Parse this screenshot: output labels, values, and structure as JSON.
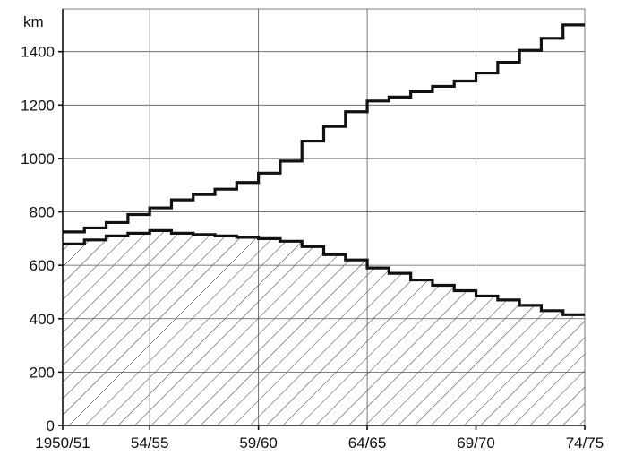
{
  "chart_data": {
    "type": "area",
    "title": "",
    "xlabel": "",
    "ylabel": "km",
    "ylim": [
      0,
      1560
    ],
    "yticks": [
      0,
      200,
      400,
      600,
      800,
      1000,
      1200,
      1400
    ],
    "xlim": [
      0,
      24
    ],
    "xtick_positions": [
      0,
      4,
      9,
      14,
      19,
      24
    ],
    "xtick_labels": [
      "1950/51",
      "54/55",
      "59/60",
      "64/65",
      "69/70",
      "74/75"
    ],
    "grid": true,
    "series": [
      {
        "step": true,
        "x": [
          0,
          1,
          2,
          3,
          4,
          5,
          6,
          7,
          8,
          9,
          10,
          11,
          12,
          13,
          14,
          15,
          16,
          17,
          18,
          19,
          20,
          21,
          22,
          23,
          24
        ],
        "values": [
          725,
          740,
          760,
          790,
          815,
          845,
          865,
          885,
          910,
          945,
          990,
          1065,
          1120,
          1175,
          1215,
          1230,
          1250,
          1270,
          1290,
          1320,
          1360,
          1405,
          1450,
          1500,
          1530
        ]
      },
      {
        "step": true,
        "filled": true,
        "fill_pattern": "hatch",
        "x": [
          0,
          1,
          2,
          3,
          4,
          5,
          6,
          7,
          8,
          9,
          10,
          11,
          12,
          13,
          14,
          15,
          16,
          17,
          18,
          19,
          20,
          21,
          22,
          23,
          24
        ],
        "values": [
          680,
          695,
          710,
          720,
          730,
          720,
          715,
          710,
          705,
          700,
          690,
          670,
          640,
          620,
          590,
          570,
          545,
          525,
          505,
          485,
          470,
          450,
          430,
          415,
          415
        ]
      }
    ]
  }
}
